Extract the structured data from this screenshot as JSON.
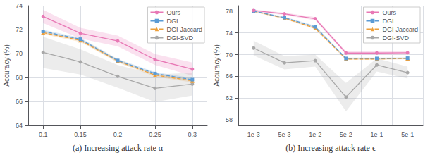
{
  "chart_data": [
    {
      "type": "line",
      "x": [
        0.1,
        0.15,
        0.2,
        0.25,
        0.3
      ],
      "xlim": [
        0.08,
        0.32
      ],
      "xticks": [
        0.1,
        0.15,
        0.2,
        0.25,
        0.3
      ],
      "ylim": [
        64,
        74
      ],
      "yticks": [
        64,
        66,
        68,
        70,
        72,
        74
      ],
      "ylabel": "Accuracy (%)",
      "caption": "(a) Increasing attack rate α",
      "grid": true,
      "legend": "upper right",
      "series": [
        {
          "name": "Ours",
          "color": "#e878b5",
          "marker": "circle",
          "line_style": "solid",
          "values": [
            73.1,
            71.7,
            71.05,
            69.5,
            68.7
          ],
          "error": [
            0.55,
            0.45,
            0.45,
            0.45,
            0.55
          ]
        },
        {
          "name": "DGI",
          "color": "#5b9bd5",
          "marker": "square",
          "line_style": "dashed",
          "values": [
            71.85,
            71.2,
            69.42,
            68.33,
            67.82
          ],
          "error": [
            0.13,
            0.13,
            0.13,
            0.13,
            0.13
          ]
        },
        {
          "name": "DGI-Jaccard",
          "color": "#ed9f3a",
          "marker": "triangle",
          "line_style": "dashed",
          "values": [
            71.75,
            71.1,
            69.38,
            68.2,
            67.72
          ],
          "error": [
            0.13,
            0.13,
            0.13,
            0.13,
            0.13
          ]
        },
        {
          "name": "DGI-SVD",
          "color": "#a8a8a8",
          "marker": "circle",
          "line_style": "solid",
          "values": [
            70.1,
            69.3,
            68.1,
            67.1,
            67.45
          ],
          "error": [
            1.3,
            1.05,
            0.95,
            1.15,
            0.95
          ]
        }
      ]
    },
    {
      "type": "line",
      "categories": [
        "1e-3",
        "5e-3",
        "1e-2",
        "5e-2",
        "1e-1",
        "5e-1"
      ],
      "ylim": [
        57,
        79
      ],
      "yticks": [
        58,
        62,
        66,
        70,
        74,
        78
      ],
      "ylabel": "Accuracy (%)",
      "caption": "(b) Increasing attack rate ϵ",
      "grid": true,
      "legend": "upper right",
      "series": [
        {
          "name": "Ours",
          "color": "#e878b5",
          "marker": "circle",
          "line_style": "solid",
          "values": [
            78.1,
            77.5,
            76.6,
            70.3,
            70.3,
            70.35
          ],
          "error": [
            0.2,
            0.2,
            0.3,
            0.3,
            0.3,
            0.3
          ]
        },
        {
          "name": "DGI",
          "color": "#5b9bd5",
          "marker": "square",
          "line_style": "dashed",
          "values": [
            78.0,
            76.8,
            75.1,
            69.3,
            69.3,
            69.35
          ],
          "error": [
            0.1,
            0.15,
            0.2,
            0.15,
            0.15,
            0.15
          ]
        },
        {
          "name": "DGI-Jaccard",
          "color": "#ed9f3a",
          "marker": "triangle",
          "line_style": "dashed",
          "values": [
            77.95,
            76.7,
            74.85,
            69.2,
            69.2,
            69.3
          ],
          "error": [
            0.1,
            0.15,
            0.2,
            0.15,
            0.15,
            0.15
          ]
        },
        {
          "name": "DGI-SVD",
          "color": "#a8a8a8",
          "marker": "circle",
          "line_style": "solid",
          "values": [
            71.2,
            68.5,
            68.9,
            62.2,
            68.1,
            66.7
          ],
          "error": [
            1.35,
            1.2,
            1.1,
            2.6,
            1.2,
            1.1
          ]
        }
      ]
    }
  ]
}
